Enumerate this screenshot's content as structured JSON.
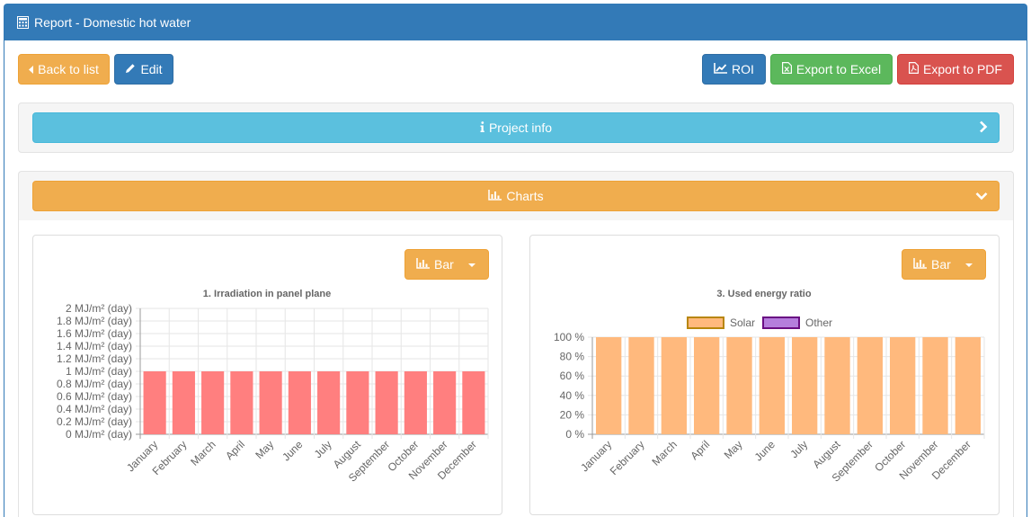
{
  "header": {
    "title": "Report - Domestic hot water",
    "icon": "calculator-icon"
  },
  "toolbar": {
    "back_label": "Back to list",
    "edit_label": "Edit",
    "roi_label": "ROI",
    "excel_label": "Export to Excel",
    "pdf_label": "Export to PDF"
  },
  "sections": {
    "project_info_label": "Project info",
    "charts_label": "Charts"
  },
  "colors": {
    "primary": "#337ab7",
    "warning": "#f0ad4e",
    "success": "#5cb85c",
    "danger": "#d9534f",
    "info": "#5bc0de",
    "bar_red": "#ff7f7f",
    "bar_orange": "#ffb97d",
    "solar_border": "#b8860b",
    "other_fill": "#b57edc",
    "other_border": "#6a0d83"
  },
  "chart_type_label": "Bar",
  "chart_data": [
    {
      "type": "bar",
      "title": "1. Irradiation in panel plane",
      "categories": [
        "January",
        "February",
        "March",
        "April",
        "May",
        "June",
        "July",
        "August",
        "September",
        "October",
        "November",
        "December"
      ],
      "values": [
        1,
        1,
        1,
        1,
        1,
        1,
        1,
        1,
        1,
        1,
        1,
        1
      ],
      "ylim": [
        0,
        2
      ],
      "yticks": [
        "0 MJ/m² (day)",
        "0.2 MJ/m² (day)",
        "0.4 MJ/m² (day)",
        "0.6 MJ/m² (day)",
        "0.8 MJ/m² (day)",
        "1 MJ/m² (day)",
        "1.2 MJ/m² (day)",
        "1.4 MJ/m² (day)",
        "1.6 MJ/m² (day)",
        "1.8 MJ/m² (day)",
        "2 MJ/m² (day)"
      ],
      "grid": true
    },
    {
      "type": "bar",
      "title": "3. Used energy ratio",
      "categories": [
        "January",
        "February",
        "March",
        "April",
        "May",
        "June",
        "July",
        "August",
        "September",
        "October",
        "November",
        "December"
      ],
      "series": [
        {
          "name": "Solar",
          "values": [
            100,
            100,
            100,
            100,
            100,
            100,
            100,
            100,
            100,
            100,
            100,
            100
          ]
        },
        {
          "name": "Other",
          "values": [
            0,
            0,
            0,
            0,
            0,
            0,
            0,
            0,
            0,
            0,
            0,
            0
          ]
        }
      ],
      "ylim": [
        0,
        100
      ],
      "yticks": [
        "0 %",
        "20 %",
        "40 %",
        "60 %",
        "80 %",
        "100 %"
      ],
      "legend": "top",
      "grid": true,
      "stacked": true
    }
  ]
}
